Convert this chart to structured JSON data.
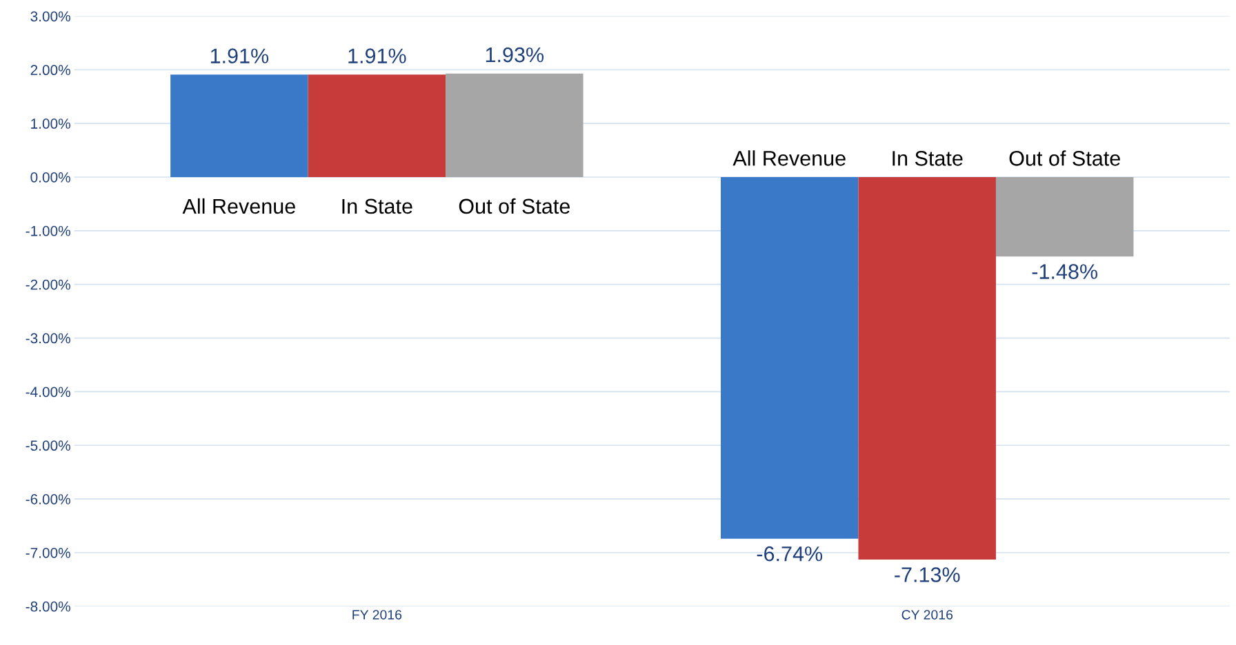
{
  "chart_data": {
    "type": "bar",
    "categories": [
      "FY 2016",
      "CY 2016"
    ],
    "series": [
      {
        "name": "All Revenue",
        "color": "#3a78c8",
        "values": [
          1.91,
          -6.74
        ],
        "value_labels": [
          "1.91%",
          "-6.74%"
        ]
      },
      {
        "name": "In State",
        "color": "#c73b3a",
        "values": [
          1.91,
          -7.13
        ],
        "value_labels": [
          "1.91%",
          "-7.13%"
        ]
      },
      {
        "name": "Out of State",
        "color": "#a6a6a6",
        "values": [
          1.93,
          -1.48
        ],
        "value_labels": [
          "1.93%",
          "-1.48%"
        ]
      }
    ],
    "ylim": [
      -8,
      3
    ],
    "yticks": [
      {
        "value": -8,
        "label": "-8.00%"
      },
      {
        "value": -7,
        "label": "-7.00%"
      },
      {
        "value": -6,
        "label": "-6.00%"
      },
      {
        "value": -5,
        "label": "-5.00%"
      },
      {
        "value": -4,
        "label": "-4.00%"
      },
      {
        "value": -3,
        "label": "-3.00%"
      },
      {
        "value": -2,
        "label": "-2.00%"
      },
      {
        "value": -1,
        "label": "-1.00%"
      },
      {
        "value": 0,
        "label": "0.00%"
      },
      {
        "value": 1,
        "label": "1.00%"
      },
      {
        "value": 2,
        "label": "2.00%"
      },
      {
        "value": 3,
        "label": "3.00%"
      }
    ],
    "grid": "y",
    "legend": false
  }
}
